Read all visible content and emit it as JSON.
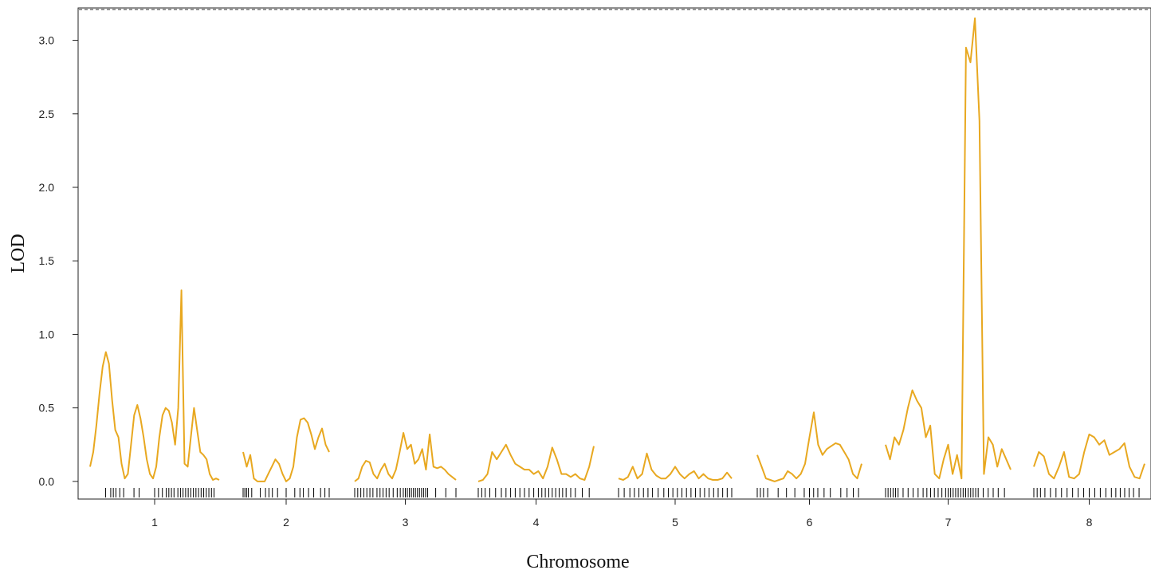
{
  "chart_data": {
    "type": "line",
    "title": "",
    "xlabel": "Chromosome",
    "ylabel": "LOD",
    "ylim": [
      -0.12,
      3.22
    ],
    "yticks": [
      "0.0",
      "0.5",
      "1.0",
      "1.5",
      "2.0",
      "2.5",
      "3.0"
    ],
    "threshold": 3.21,
    "line_color": "#E8A820",
    "chromosomes": [
      {
        "label": "1",
        "lod": [
          0.1,
          0.2,
          0.38,
          0.6,
          0.78,
          0.88,
          0.8,
          0.55,
          0.35,
          0.3,
          0.12,
          0.02,
          0.05,
          0.25,
          0.45,
          0.52,
          0.43,
          0.3,
          0.15,
          0.05,
          0.02,
          0.1,
          0.3,
          0.45,
          0.5,
          0.48,
          0.4,
          0.25,
          0.5,
          1.3,
          0.12,
          0.1,
          0.3,
          0.5,
          0.35,
          0.2,
          0.18,
          0.15,
          0.05,
          0.01,
          0.02,
          0.01
        ],
        "markers": [
          0.12,
          0.16,
          0.18,
          0.2,
          0.23,
          0.26,
          0.34,
          0.38,
          0.5,
          0.53,
          0.56,
          0.59,
          0.61,
          0.63,
          0.65,
          0.68,
          0.7,
          0.72,
          0.74,
          0.76,
          0.78,
          0.8,
          0.82,
          0.84,
          0.86,
          0.88,
          0.9,
          0.92,
          0.94,
          0.96
        ]
      },
      {
        "label": "2",
        "lod": [
          0.2,
          0.1,
          0.18,
          0.02,
          0.0,
          0.0,
          0.0,
          0.05,
          0.1,
          0.15,
          0.12,
          0.05,
          0.0,
          0.02,
          0.1,
          0.3,
          0.42,
          0.43,
          0.4,
          0.32,
          0.22,
          0.3,
          0.36,
          0.25,
          0.2
        ],
        "markers": [
          0.0,
          0.02,
          0.04,
          0.06,
          0.1,
          0.2,
          0.26,
          0.3,
          0.34,
          0.4,
          0.5,
          0.6,
          0.66,
          0.7,
          0.76,
          0.82,
          0.9,
          0.95,
          1.0
        ]
      },
      {
        "label": "3",
        "lod": [
          0.0,
          0.02,
          0.1,
          0.14,
          0.13,
          0.05,
          0.02,
          0.08,
          0.12,
          0.05,
          0.02,
          0.08,
          0.2,
          0.33,
          0.22,
          0.25,
          0.12,
          0.15,
          0.22,
          0.08,
          0.32,
          0.1,
          0.09,
          0.1,
          0.08,
          0.05,
          0.03,
          0.01
        ],
        "markers": [
          0.0,
          0.03,
          0.06,
          0.09,
          0.12,
          0.15,
          0.18,
          0.22,
          0.25,
          0.28,
          0.31,
          0.34,
          0.38,
          0.42,
          0.45,
          0.48,
          0.5,
          0.52,
          0.54,
          0.56,
          0.58,
          0.6,
          0.62,
          0.64,
          0.66,
          0.68,
          0.7,
          0.72,
          0.8,
          0.9,
          1.0
        ]
      },
      {
        "label": "4",
        "lod": [
          0.0,
          0.01,
          0.05,
          0.2,
          0.15,
          0.2,
          0.25,
          0.18,
          0.12,
          0.1,
          0.08,
          0.08,
          0.05,
          0.07,
          0.02,
          0.1,
          0.23,
          0.15,
          0.05,
          0.05,
          0.03,
          0.05,
          0.02,
          0.01,
          0.1,
          0.24
        ],
        "markers": [
          0.0,
          0.03,
          0.06,
          0.1,
          0.15,
          0.2,
          0.24,
          0.28,
          0.32,
          0.36,
          0.4,
          0.44,
          0.48,
          0.52,
          0.55,
          0.58,
          0.61,
          0.64,
          0.67,
          0.7,
          0.73,
          0.76,
          0.8,
          0.84,
          0.9,
          0.96
        ]
      },
      {
        "label": "5",
        "lod": [
          0.02,
          0.01,
          0.03,
          0.1,
          0.02,
          0.05,
          0.19,
          0.08,
          0.04,
          0.02,
          0.02,
          0.05,
          0.1,
          0.05,
          0.02,
          0.05,
          0.07,
          0.02,
          0.05,
          0.02,
          0.01,
          0.01,
          0.02,
          0.06,
          0.02
        ],
        "markers": [
          0.0,
          0.05,
          0.1,
          0.14,
          0.18,
          0.22,
          0.26,
          0.3,
          0.35,
          0.4,
          0.44,
          0.48,
          0.52,
          0.56,
          0.6,
          0.64,
          0.68,
          0.72,
          0.76,
          0.8,
          0.84,
          0.88,
          0.92,
          0.96,
          1.0
        ]
      },
      {
        "label": "6",
        "lod": [
          0.18,
          0.1,
          0.02,
          0.01,
          0.0,
          0.01,
          0.02,
          0.07,
          0.05,
          0.02,
          0.05,
          0.12,
          0.3,
          0.47,
          0.25,
          0.18,
          0.22,
          0.24,
          0.26,
          0.25,
          0.2,
          0.15,
          0.05,
          0.02,
          0.12
        ],
        "markers": [
          0.0,
          0.03,
          0.06,
          0.1,
          0.2,
          0.28,
          0.36,
          0.45,
          0.5,
          0.54,
          0.58,
          0.64,
          0.7,
          0.8,
          0.86,
          0.92,
          0.97
        ]
      },
      {
        "label": "7",
        "lod": [
          0.25,
          0.15,
          0.3,
          0.25,
          0.35,
          0.5,
          0.62,
          0.55,
          0.5,
          0.3,
          0.38,
          0.05,
          0.02,
          0.15,
          0.25,
          0.05,
          0.18,
          0.02,
          2.95,
          2.85,
          3.15,
          2.45,
          0.05,
          0.3,
          0.25,
          0.1,
          0.22,
          0.15,
          0.08
        ],
        "markers": [
          0.0,
          0.02,
          0.04,
          0.06,
          0.08,
          0.1,
          0.14,
          0.18,
          0.22,
          0.26,
          0.3,
          0.33,
          0.36,
          0.39,
          0.42,
          0.45,
          0.48,
          0.5,
          0.52,
          0.54,
          0.56,
          0.58,
          0.6,
          0.62,
          0.64,
          0.66,
          0.68,
          0.7,
          0.72,
          0.74,
          0.78,
          0.82,
          0.86,
          0.9,
          0.95
        ]
      },
      {
        "label": "8",
        "lod": [
          0.1,
          0.2,
          0.17,
          0.05,
          0.02,
          0.1,
          0.2,
          0.03,
          0.02,
          0.05,
          0.2,
          0.32,
          0.3,
          0.25,
          0.28,
          0.18,
          0.2,
          0.22,
          0.26,
          0.1,
          0.03,
          0.02,
          0.12
        ],
        "markers": [
          0.0,
          0.03,
          0.06,
          0.1,
          0.15,
          0.2,
          0.25,
          0.3,
          0.35,
          0.4,
          0.45,
          0.5,
          0.55,
          0.6,
          0.65,
          0.7,
          0.74,
          0.78,
          0.82,
          0.86,
          0.9,
          0.95
        ]
      }
    ]
  }
}
